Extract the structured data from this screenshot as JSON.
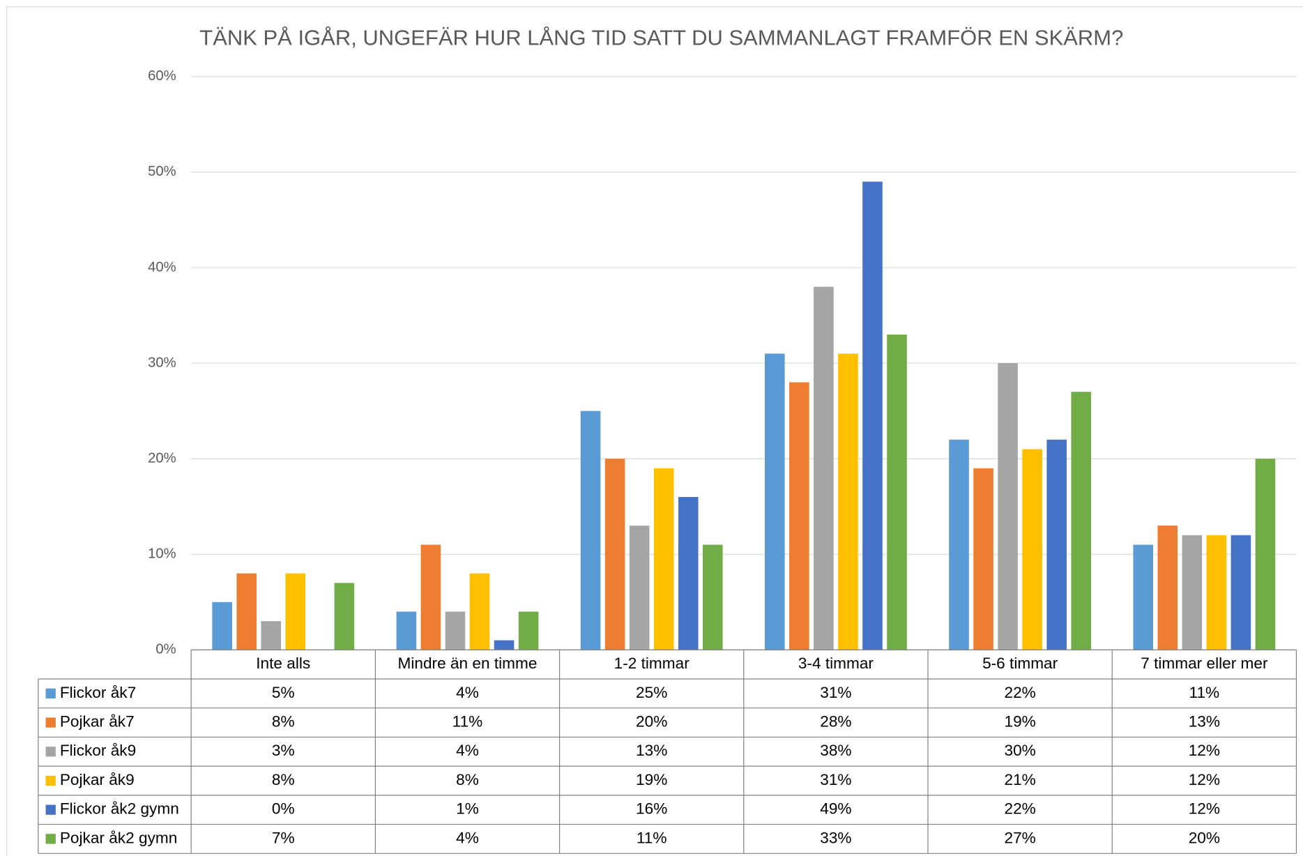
{
  "chart_data": {
    "type": "bar",
    "title": "TÄNK PÅ IGÅR, UNGEFÄR HUR LÅNG TID SATT DU SAMMANLAGT FRAMFÖR EN SKÄRM?",
    "categories": [
      "Inte alls",
      "Mindre än en timme",
      "1-2 timmar",
      "3-4 timmar",
      "5-6 timmar",
      "7 timmar eller mer"
    ],
    "series": [
      {
        "name": "Flickor åk7",
        "color": "#5b9bd5",
        "values": [
          5,
          4,
          25,
          31,
          22,
          11
        ],
        "value_labels": [
          "5%",
          "4%",
          "25%",
          "31%",
          "22%",
          "11%"
        ]
      },
      {
        "name": "Pojkar åk7",
        "color": "#ed7d31",
        "values": [
          8,
          11,
          20,
          28,
          19,
          13
        ],
        "value_labels": [
          "8%",
          "11%",
          "20%",
          "28%",
          "19%",
          "13%"
        ]
      },
      {
        "name": "Flickor åk9",
        "color": "#a5a5a5",
        "values": [
          3,
          4,
          13,
          38,
          30,
          12
        ],
        "value_labels": [
          "3%",
          "4%",
          "13%",
          "38%",
          "30%",
          "12%"
        ]
      },
      {
        "name": "Pojkar åk9",
        "color": "#ffc000",
        "values": [
          8,
          8,
          19,
          31,
          21,
          12
        ],
        "value_labels": [
          "8%",
          "8%",
          "19%",
          "31%",
          "21%",
          "12%"
        ]
      },
      {
        "name": "Flickor åk2 gymn",
        "color": "#4472c4",
        "values": [
          0,
          1,
          16,
          49,
          22,
          12
        ],
        "value_labels": [
          "0%",
          "1%",
          "16%",
          "49%",
          "22%",
          "12%"
        ]
      },
      {
        "name": "Pojkar åk2 gymn",
        "color": "#70ad47",
        "values": [
          7,
          4,
          11,
          33,
          27,
          20
        ],
        "value_labels": [
          "7%",
          "4%",
          "11%",
          "33%",
          "27%",
          "20%"
        ]
      }
    ],
    "ylim": [
      0,
      60
    ],
    "yticks": [
      {
        "value": 0,
        "label": "0%"
      },
      {
        "value": 10,
        "label": "10%"
      },
      {
        "value": 20,
        "label": "20%"
      },
      {
        "value": 30,
        "label": "30%"
      },
      {
        "value": 40,
        "label": "40%"
      },
      {
        "value": 50,
        "label": "50%"
      },
      {
        "value": 60,
        "label": "60%"
      }
    ],
    "grid": true
  }
}
